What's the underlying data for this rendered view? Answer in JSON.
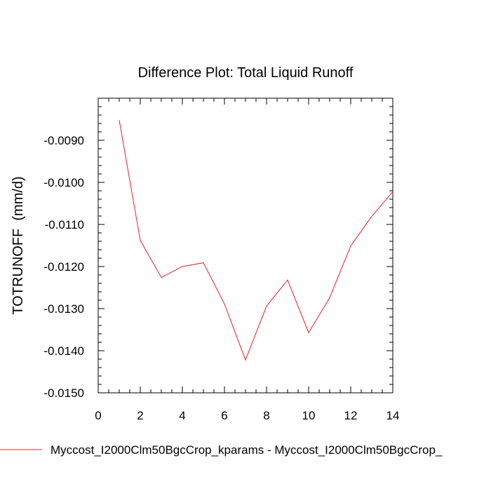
{
  "chart_data": {
    "type": "line",
    "title": "Difference Plot: Total Liquid Runoff",
    "xlabel": "",
    "ylabel": "TOTRUNOFF  (mm/d)",
    "xlim": [
      0,
      14
    ],
    "ylim": [
      -0.015,
      -0.008
    ],
    "x_ticks": [
      0,
      2,
      4,
      6,
      8,
      10,
      12,
      14
    ],
    "x_tick_labels": [
      "0",
      "2",
      "4",
      "6",
      "8",
      "10",
      "12",
      "14"
    ],
    "y_ticks": [
      -0.015,
      -0.014,
      -0.013,
      -0.012,
      -0.011,
      -0.01,
      -0.009
    ],
    "y_tick_labels": [
      "-0.0150",
      "-0.0140",
      "-0.0130",
      "-0.0120",
      "-0.0110",
      "-0.0100",
      "-0.0090"
    ],
    "grid": false,
    "legend_position": "bottom",
    "series": [
      {
        "name": "Myccost_I2000Clm50BgcCrop_kparams - Myccost_I2000Clm50BgcCrop_",
        "color": "#e8202a",
        "x": [
          1,
          2,
          3,
          4,
          5,
          6,
          7,
          8,
          9,
          10,
          11,
          12,
          13,
          14
        ],
        "y": [
          -0.00852,
          -0.01138,
          -0.01226,
          -0.012,
          -0.01191,
          -0.01289,
          -0.01422,
          -0.01294,
          -0.01232,
          -0.01357,
          -0.01274,
          -0.01151,
          -0.01081,
          -0.01022
        ]
      }
    ]
  }
}
